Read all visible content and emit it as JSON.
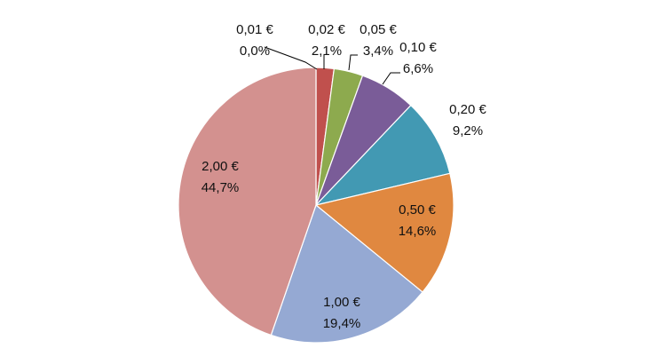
{
  "chart_data": {
    "type": "pie",
    "title": "",
    "legend": "none",
    "start_angle_deg": 0,
    "direction": "clockwise",
    "slices": [
      {
        "label": "0,01 €",
        "percent_label": "0,0%",
        "value": 0.0,
        "color": "#C0504D"
      },
      {
        "label": "0,02 €",
        "percent_label": "2,1%",
        "value": 2.1,
        "color": "#C0504D"
      },
      {
        "label": "0,05 €",
        "percent_label": "3,4%",
        "value": 3.4,
        "color": "#8DAA4E"
      },
      {
        "label": "0,10 €",
        "percent_label": "6,6%",
        "value": 6.6,
        "color": "#7A5C98"
      },
      {
        "label": "0,20 €",
        "percent_label": "9,2%",
        "value": 9.2,
        "color": "#4299B3"
      },
      {
        "label": "0,50 €",
        "percent_label": "14,6%",
        "value": 14.6,
        "color": "#E08840"
      },
      {
        "label": "1,00 €",
        "percent_label": "19,4%",
        "value": 19.4,
        "color": "#95A9D3"
      },
      {
        "label": "2,00 €",
        "percent_label": "44,7%",
        "value": 44.7,
        "color": "#D3918F"
      }
    ]
  }
}
